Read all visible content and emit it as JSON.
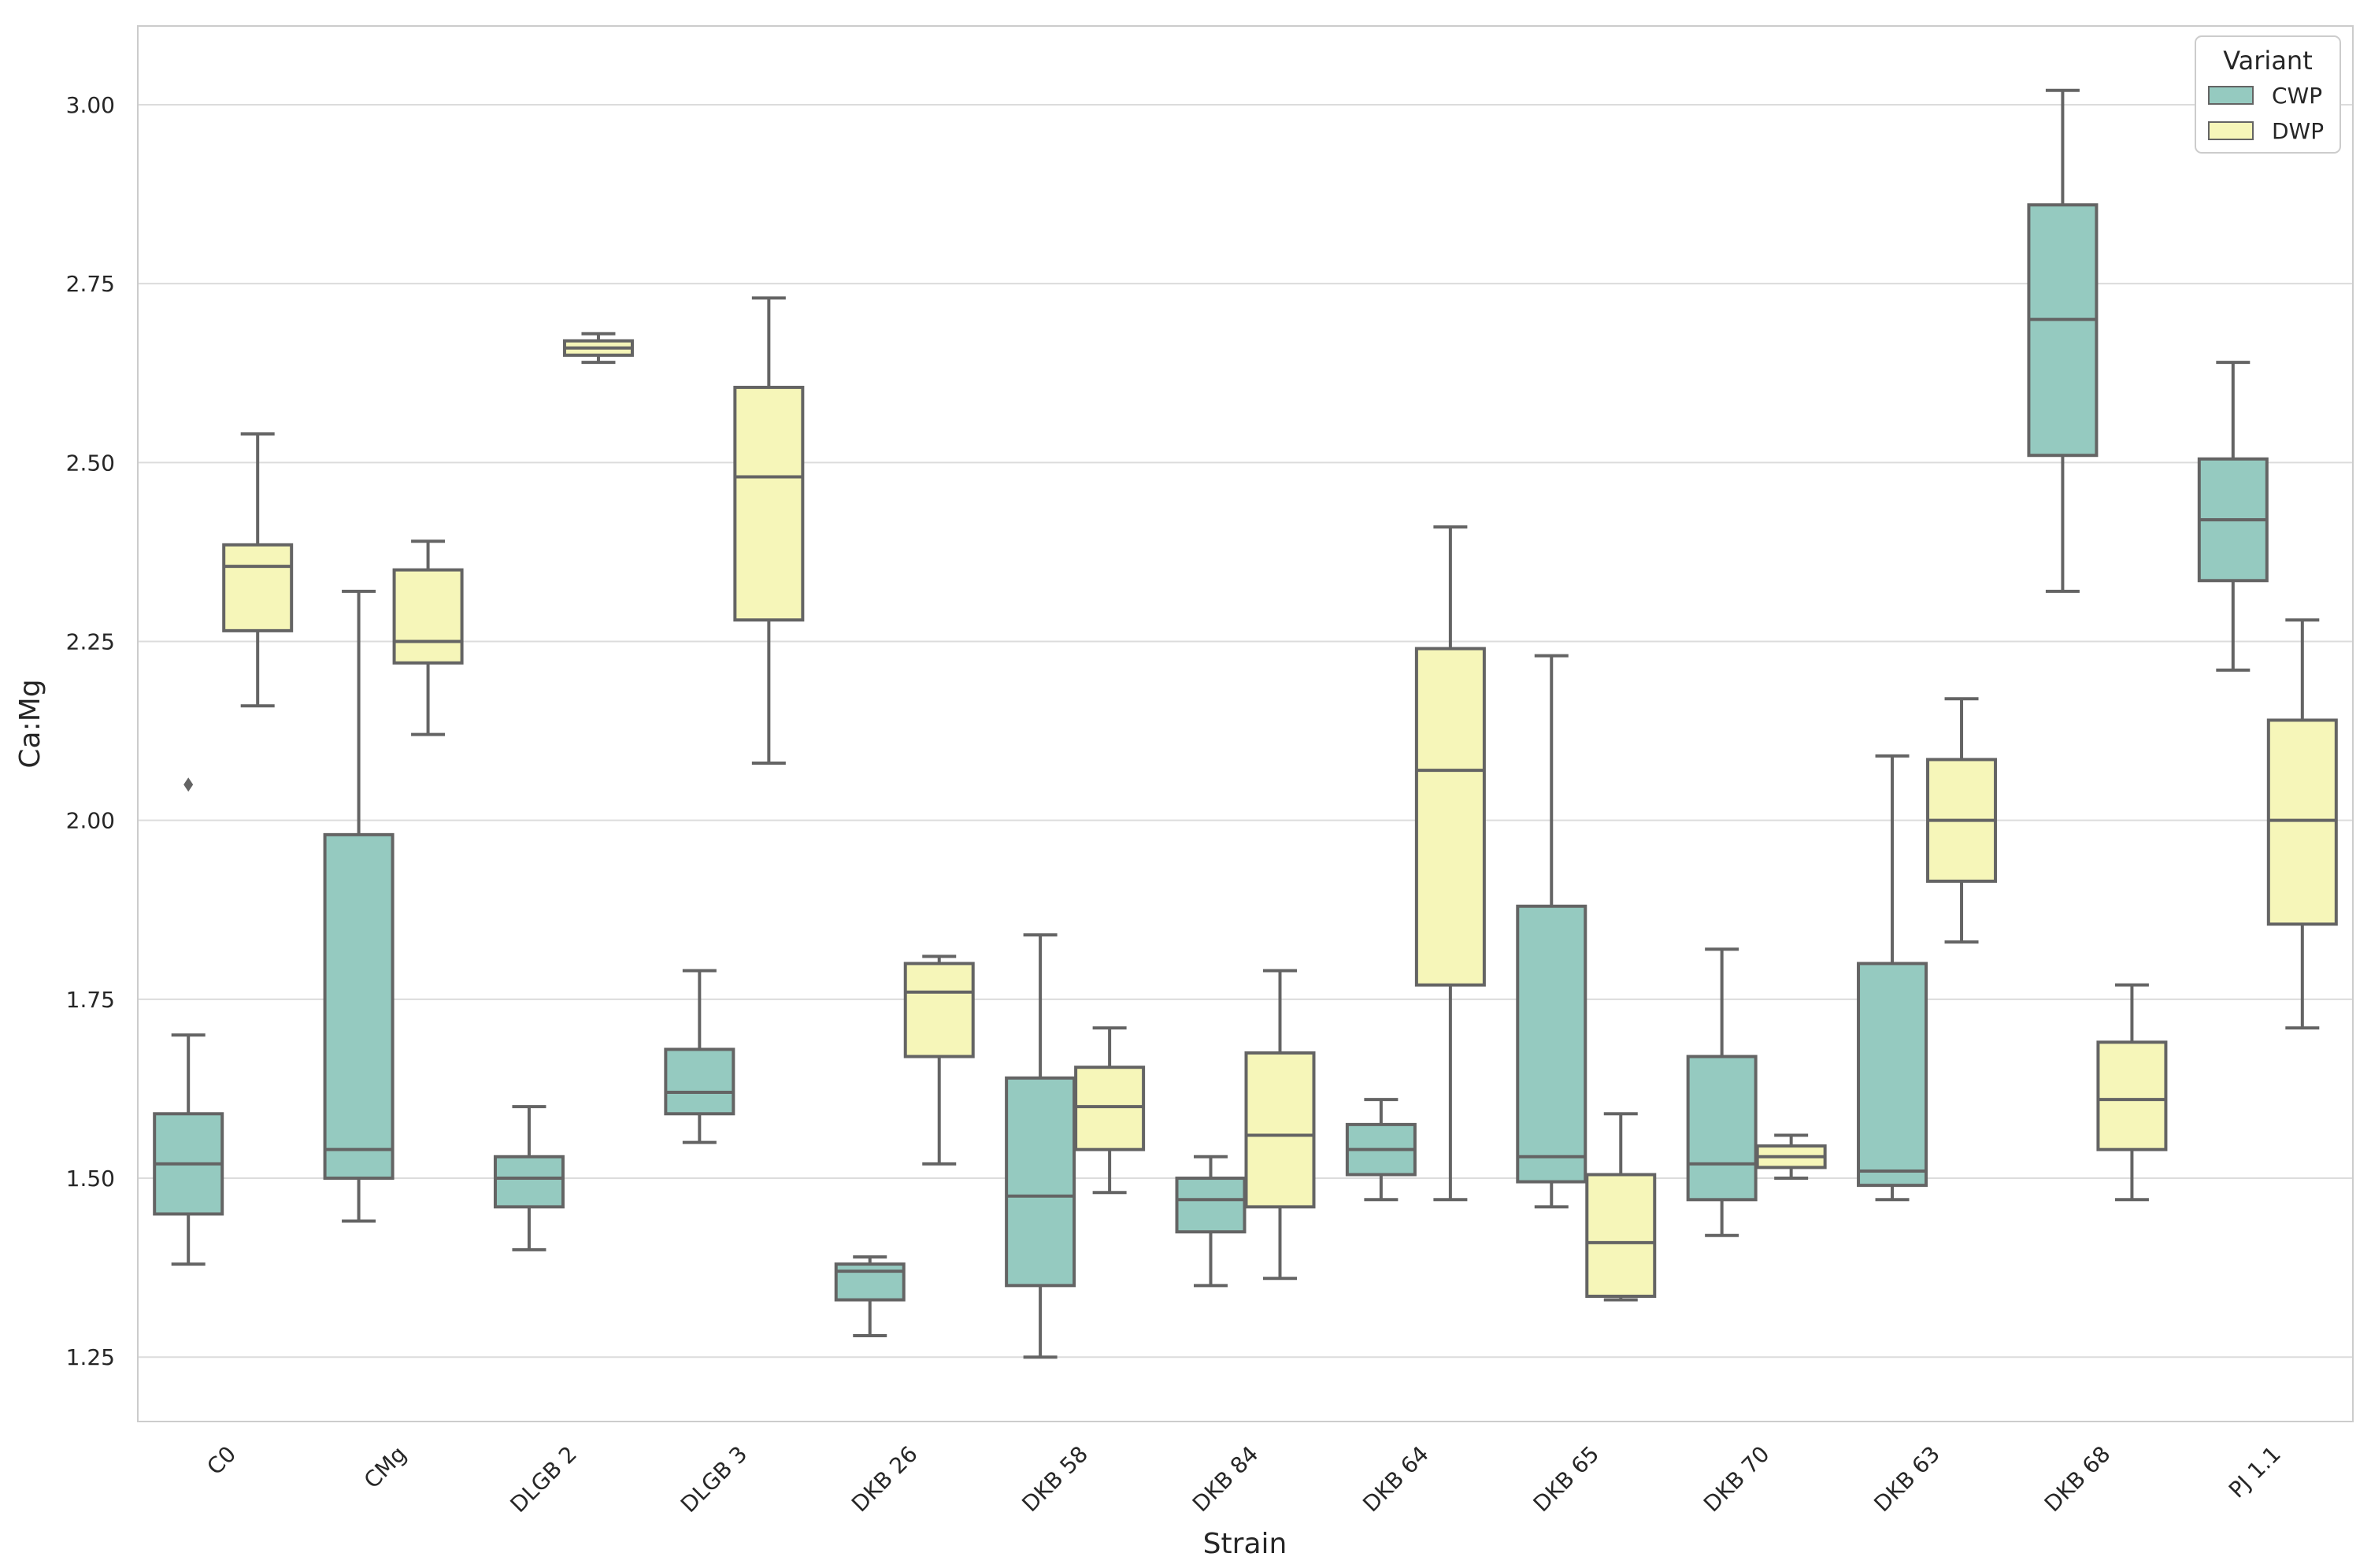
{
  "chart_data": {
    "type": "boxplot",
    "xlabel": "Strain",
    "ylabel": "Ca:Mg",
    "ylim": [
      1.16,
      3.11
    ],
    "yticks": [
      "1.25",
      "1.50",
      "1.75",
      "2.00",
      "2.25",
      "2.50",
      "2.75",
      "3.00"
    ],
    "ytick_values": [
      1.25,
      1.5,
      1.75,
      2.0,
      2.25,
      2.5,
      2.75,
      3.0
    ],
    "grid": "horizontal",
    "categories": [
      "C0",
      "CMg",
      "DLGB 2",
      "DLGB 3",
      "DKB 26",
      "DKB 58",
      "DKB 84",
      "DKB 64",
      "DKB 65",
      "DKB 70",
      "DKB 63",
      "DKB 68",
      "PJ 1.1"
    ],
    "legend": {
      "title": "Variant",
      "position": "top-right",
      "entries": [
        {
          "name": "CWP",
          "color": "#95cac0"
        },
        {
          "name": "DWP",
          "color": "#f6f6b9"
        }
      ]
    },
    "colors": {
      "box_edge": "#646464",
      "grid": "#dcdcdc",
      "frame": "#cccccc"
    },
    "series": [
      {
        "name": "CWP",
        "boxes": [
          {
            "category": "C0",
            "whislo": 1.38,
            "q1": 1.45,
            "med": 1.52,
            "q3": 1.59,
            "whishi": 1.7,
            "fliers": [
              2.05
            ]
          },
          {
            "category": "CMg",
            "whislo": 1.44,
            "q1": 1.5,
            "med": 1.54,
            "q3": 1.98,
            "whishi": 2.32,
            "fliers": []
          },
          {
            "category": "DLGB 2",
            "whislo": 1.4,
            "q1": 1.46,
            "med": 1.5,
            "q3": 1.53,
            "whishi": 1.6,
            "fliers": []
          },
          {
            "category": "DLGB 3",
            "whislo": 1.55,
            "q1": 1.59,
            "med": 1.62,
            "q3": 1.68,
            "whishi": 1.79,
            "fliers": []
          },
          {
            "category": "DKB 26",
            "whislo": 1.28,
            "q1": 1.33,
            "med": 1.37,
            "q3": 1.38,
            "whishi": 1.39,
            "fliers": []
          },
          {
            "category": "DKB 58",
            "whislo": 1.25,
            "q1": 1.35,
            "med": 1.475,
            "q3": 1.64,
            "whishi": 1.84,
            "fliers": []
          },
          {
            "category": "DKB 84",
            "whislo": 1.35,
            "q1": 1.425,
            "med": 1.47,
            "q3": 1.5,
            "whishi": 1.53,
            "fliers": []
          },
          {
            "category": "DKB 64",
            "whislo": 1.47,
            "q1": 1.505,
            "med": 1.54,
            "q3": 1.575,
            "whishi": 1.61,
            "fliers": []
          },
          {
            "category": "DKB 65",
            "whislo": 1.46,
            "q1": 1.495,
            "med": 1.53,
            "q3": 1.88,
            "whishi": 2.23,
            "fliers": []
          },
          {
            "category": "DKB 70",
            "whislo": 1.42,
            "q1": 1.47,
            "med": 1.52,
            "q3": 1.67,
            "whishi": 1.82,
            "fliers": []
          },
          {
            "category": "DKB 63",
            "whislo": 1.47,
            "q1": 1.49,
            "med": 1.51,
            "q3": 1.8,
            "whishi": 2.09,
            "fliers": []
          },
          {
            "category": "DKB 68",
            "whislo": 2.32,
            "q1": 2.51,
            "med": 2.7,
            "q3": 2.86,
            "whishi": 3.02,
            "fliers": []
          },
          {
            "category": "PJ 1.1",
            "whislo": 2.21,
            "q1": 2.335,
            "med": 2.42,
            "q3": 2.505,
            "whishi": 2.64,
            "fliers": []
          }
        ]
      },
      {
        "name": "DWP",
        "boxes": [
          {
            "category": "C0",
            "whislo": 2.16,
            "q1": 2.265,
            "med": 2.355,
            "q3": 2.385,
            "whishi": 2.54,
            "fliers": []
          },
          {
            "category": "CMg",
            "whislo": 2.12,
            "q1": 2.22,
            "med": 2.25,
            "q3": 2.35,
            "whishi": 2.39,
            "fliers": []
          },
          {
            "category": "DLGB 2",
            "whislo": 2.64,
            "q1": 2.65,
            "med": 2.66,
            "q3": 2.67,
            "whishi": 2.68,
            "fliers": []
          },
          {
            "category": "DLGB 3",
            "whislo": 2.08,
            "q1": 2.28,
            "med": 2.48,
            "q3": 2.605,
            "whishi": 2.73,
            "fliers": []
          },
          {
            "category": "DKB 26",
            "whislo": 1.52,
            "q1": 1.67,
            "med": 1.76,
            "q3": 1.8,
            "whishi": 1.81,
            "fliers": []
          },
          {
            "category": "DKB 58",
            "whislo": 1.48,
            "q1": 1.54,
            "med": 1.6,
            "q3": 1.655,
            "whishi": 1.71,
            "fliers": []
          },
          {
            "category": "DKB 84",
            "whislo": 1.36,
            "q1": 1.46,
            "med": 1.56,
            "q3": 1.675,
            "whishi": 1.79,
            "fliers": []
          },
          {
            "category": "DKB 64",
            "whislo": 1.47,
            "q1": 1.77,
            "med": 2.07,
            "q3": 2.24,
            "whishi": 2.41,
            "fliers": []
          },
          {
            "category": "DKB 65",
            "whislo": 1.33,
            "q1": 1.335,
            "med": 1.41,
            "q3": 1.505,
            "whishi": 1.59,
            "fliers": []
          },
          {
            "category": "DKB 70",
            "whislo": 1.5,
            "q1": 1.515,
            "med": 1.53,
            "q3": 1.545,
            "whishi": 1.56,
            "fliers": []
          },
          {
            "category": "DKB 63",
            "whislo": 1.83,
            "q1": 1.915,
            "med": 2.0,
            "q3": 2.085,
            "whishi": 2.17,
            "fliers": []
          },
          {
            "category": "DKB 68",
            "whislo": 1.47,
            "q1": 1.54,
            "med": 1.61,
            "q3": 1.69,
            "whishi": 1.77,
            "fliers": []
          },
          {
            "category": "PJ 1.1",
            "whislo": 1.71,
            "q1": 1.855,
            "med": 2.0,
            "q3": 2.14,
            "whishi": 2.28,
            "fliers": []
          }
        ]
      }
    ]
  }
}
